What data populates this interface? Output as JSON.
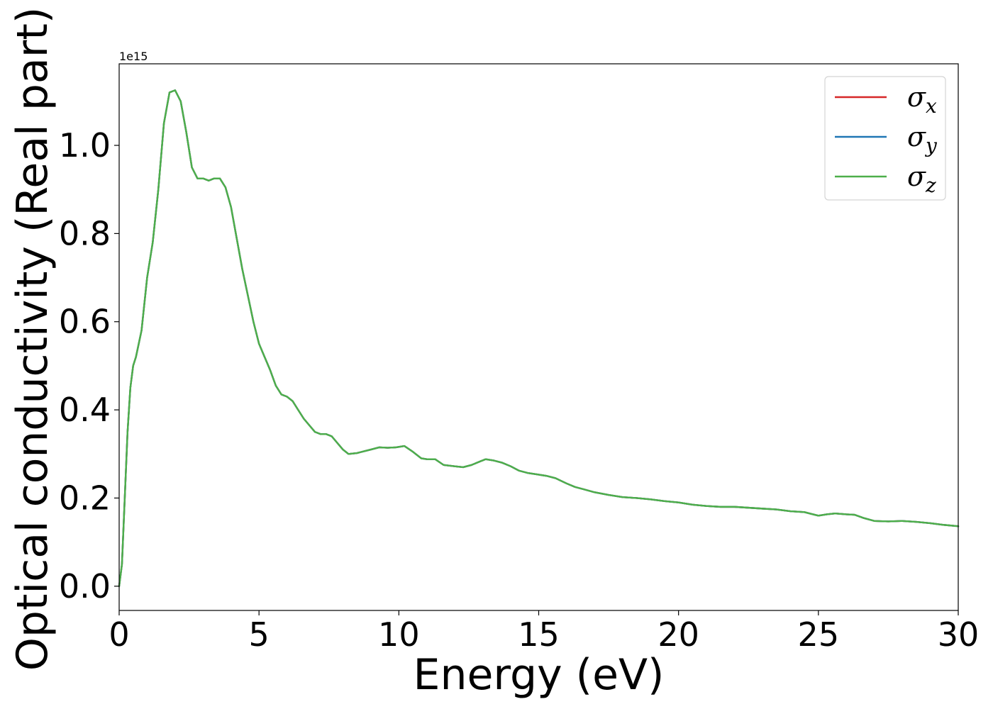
{
  "chart_data": {
    "type": "line",
    "title": "",
    "xlabel": "Energy (eV)",
    "ylabel": "Optical conductivity (Real part)",
    "y_offset_label": "1e15",
    "y_scale": 1000000000000000.0,
    "xlim": [
      0,
      30
    ],
    "ylim": [
      -0.055,
      1.185
    ],
    "x_ticks": [
      0,
      5,
      10,
      15,
      20,
      25,
      30
    ],
    "x_tick_labels": [
      "0",
      "5",
      "10",
      "15",
      "20",
      "25",
      "30"
    ],
    "y_ticks": [
      0.0,
      0.2,
      0.4,
      0.6,
      0.8,
      1.0
    ],
    "y_tick_labels": [
      "0.0",
      "0.2",
      "0.4",
      "0.6",
      "0.8",
      "1.0"
    ],
    "grid": false,
    "legend_position": "top-right",
    "x": [
      0.0,
      0.1,
      0.2,
      0.3,
      0.4,
      0.5,
      0.6,
      0.8,
      1.0,
      1.2,
      1.4,
      1.6,
      1.8,
      2.0,
      2.2,
      2.4,
      2.6,
      2.8,
      3.0,
      3.2,
      3.4,
      3.6,
      3.8,
      4.0,
      4.2,
      4.4,
      4.6,
      4.8,
      5.0,
      5.2,
      5.4,
      5.6,
      5.8,
      6.0,
      6.2,
      6.4,
      6.6,
      6.8,
      7.0,
      7.2,
      7.4,
      7.6,
      7.8,
      8.0,
      8.2,
      8.5,
      9.0,
      9.3,
      9.6,
      9.9,
      10.2,
      10.5,
      10.8,
      11.0,
      11.3,
      11.6,
      12.0,
      12.3,
      12.6,
      12.9,
      13.1,
      13.4,
      13.7,
      14.0,
      14.3,
      14.6,
      15.0,
      15.3,
      15.6,
      16.0,
      16.3,
      16.6,
      17.0,
      17.5,
      18.0,
      18.5,
      19.0,
      19.5,
      20.0,
      20.5,
      21.0,
      21.5,
      22.0,
      22.5,
      23.0,
      23.5,
      24.0,
      24.5,
      25.0,
      25.3,
      25.6,
      26.0,
      26.3,
      26.6,
      27.0,
      27.5,
      28.0,
      28.5,
      29.0,
      29.5,
      30.0
    ],
    "series": [
      {
        "name": "σx",
        "color": "#d62728",
        "values": [
          0.0,
          0.05,
          0.2,
          0.35,
          0.45,
          0.5,
          0.52,
          0.58,
          0.7,
          0.78,
          0.9,
          1.05,
          1.12,
          1.125,
          1.1,
          1.03,
          0.95,
          0.925,
          0.925,
          0.92,
          0.925,
          0.925,
          0.905,
          0.86,
          0.79,
          0.72,
          0.66,
          0.6,
          0.55,
          0.52,
          0.49,
          0.455,
          0.435,
          0.43,
          0.42,
          0.4,
          0.38,
          0.365,
          0.35,
          0.345,
          0.345,
          0.34,
          0.325,
          0.31,
          0.3,
          0.302,
          0.31,
          0.315,
          0.314,
          0.315,
          0.318,
          0.305,
          0.29,
          0.288,
          0.288,
          0.275,
          0.272,
          0.27,
          0.275,
          0.283,
          0.288,
          0.285,
          0.28,
          0.272,
          0.262,
          0.257,
          0.253,
          0.25,
          0.245,
          0.233,
          0.225,
          0.22,
          0.213,
          0.207,
          0.202,
          0.2,
          0.197,
          0.193,
          0.19,
          0.185,
          0.182,
          0.18,
          0.18,
          0.178,
          0.176,
          0.174,
          0.17,
          0.168,
          0.16,
          0.163,
          0.165,
          0.163,
          0.162,
          0.155,
          0.148,
          0.147,
          0.148,
          0.146,
          0.143,
          0.139,
          0.136
        ]
      },
      {
        "name": "σy",
        "color": "#1f77b4",
        "values": [
          0.0,
          0.05,
          0.2,
          0.35,
          0.45,
          0.5,
          0.52,
          0.58,
          0.7,
          0.78,
          0.9,
          1.05,
          1.12,
          1.125,
          1.1,
          1.03,
          0.95,
          0.925,
          0.925,
          0.92,
          0.925,
          0.925,
          0.905,
          0.86,
          0.79,
          0.72,
          0.66,
          0.6,
          0.55,
          0.52,
          0.49,
          0.455,
          0.435,
          0.43,
          0.42,
          0.4,
          0.38,
          0.365,
          0.35,
          0.345,
          0.345,
          0.34,
          0.325,
          0.31,
          0.3,
          0.302,
          0.31,
          0.315,
          0.314,
          0.315,
          0.318,
          0.305,
          0.29,
          0.288,
          0.288,
          0.275,
          0.272,
          0.27,
          0.275,
          0.283,
          0.288,
          0.285,
          0.28,
          0.272,
          0.262,
          0.257,
          0.253,
          0.25,
          0.245,
          0.233,
          0.225,
          0.22,
          0.213,
          0.207,
          0.202,
          0.2,
          0.197,
          0.193,
          0.19,
          0.185,
          0.182,
          0.18,
          0.18,
          0.178,
          0.176,
          0.174,
          0.17,
          0.168,
          0.16,
          0.163,
          0.165,
          0.163,
          0.162,
          0.155,
          0.148,
          0.147,
          0.148,
          0.146,
          0.143,
          0.139,
          0.136
        ]
      },
      {
        "name": "σz",
        "color": "#4daf4a",
        "values": [
          0.0,
          0.05,
          0.2,
          0.35,
          0.45,
          0.5,
          0.52,
          0.58,
          0.7,
          0.78,
          0.9,
          1.05,
          1.12,
          1.125,
          1.1,
          1.03,
          0.95,
          0.925,
          0.925,
          0.92,
          0.925,
          0.925,
          0.905,
          0.86,
          0.79,
          0.72,
          0.66,
          0.6,
          0.55,
          0.52,
          0.49,
          0.455,
          0.435,
          0.43,
          0.42,
          0.4,
          0.38,
          0.365,
          0.35,
          0.345,
          0.345,
          0.34,
          0.325,
          0.31,
          0.3,
          0.302,
          0.31,
          0.315,
          0.314,
          0.315,
          0.318,
          0.305,
          0.29,
          0.288,
          0.288,
          0.275,
          0.272,
          0.27,
          0.275,
          0.283,
          0.288,
          0.285,
          0.28,
          0.272,
          0.262,
          0.257,
          0.253,
          0.25,
          0.245,
          0.233,
          0.225,
          0.22,
          0.213,
          0.207,
          0.202,
          0.2,
          0.197,
          0.193,
          0.19,
          0.185,
          0.182,
          0.18,
          0.18,
          0.178,
          0.176,
          0.174,
          0.17,
          0.168,
          0.16,
          0.163,
          0.165,
          0.163,
          0.162,
          0.155,
          0.148,
          0.147,
          0.148,
          0.146,
          0.143,
          0.139,
          0.136
        ]
      }
    ],
    "legend": [
      {
        "symbol": "σ",
        "subscript": "x",
        "color": "#d62728"
      },
      {
        "symbol": "σ",
        "subscript": "y",
        "color": "#1f77b4"
      },
      {
        "symbol": "σ",
        "subscript": "z",
        "color": "#4daf4a"
      }
    ]
  }
}
